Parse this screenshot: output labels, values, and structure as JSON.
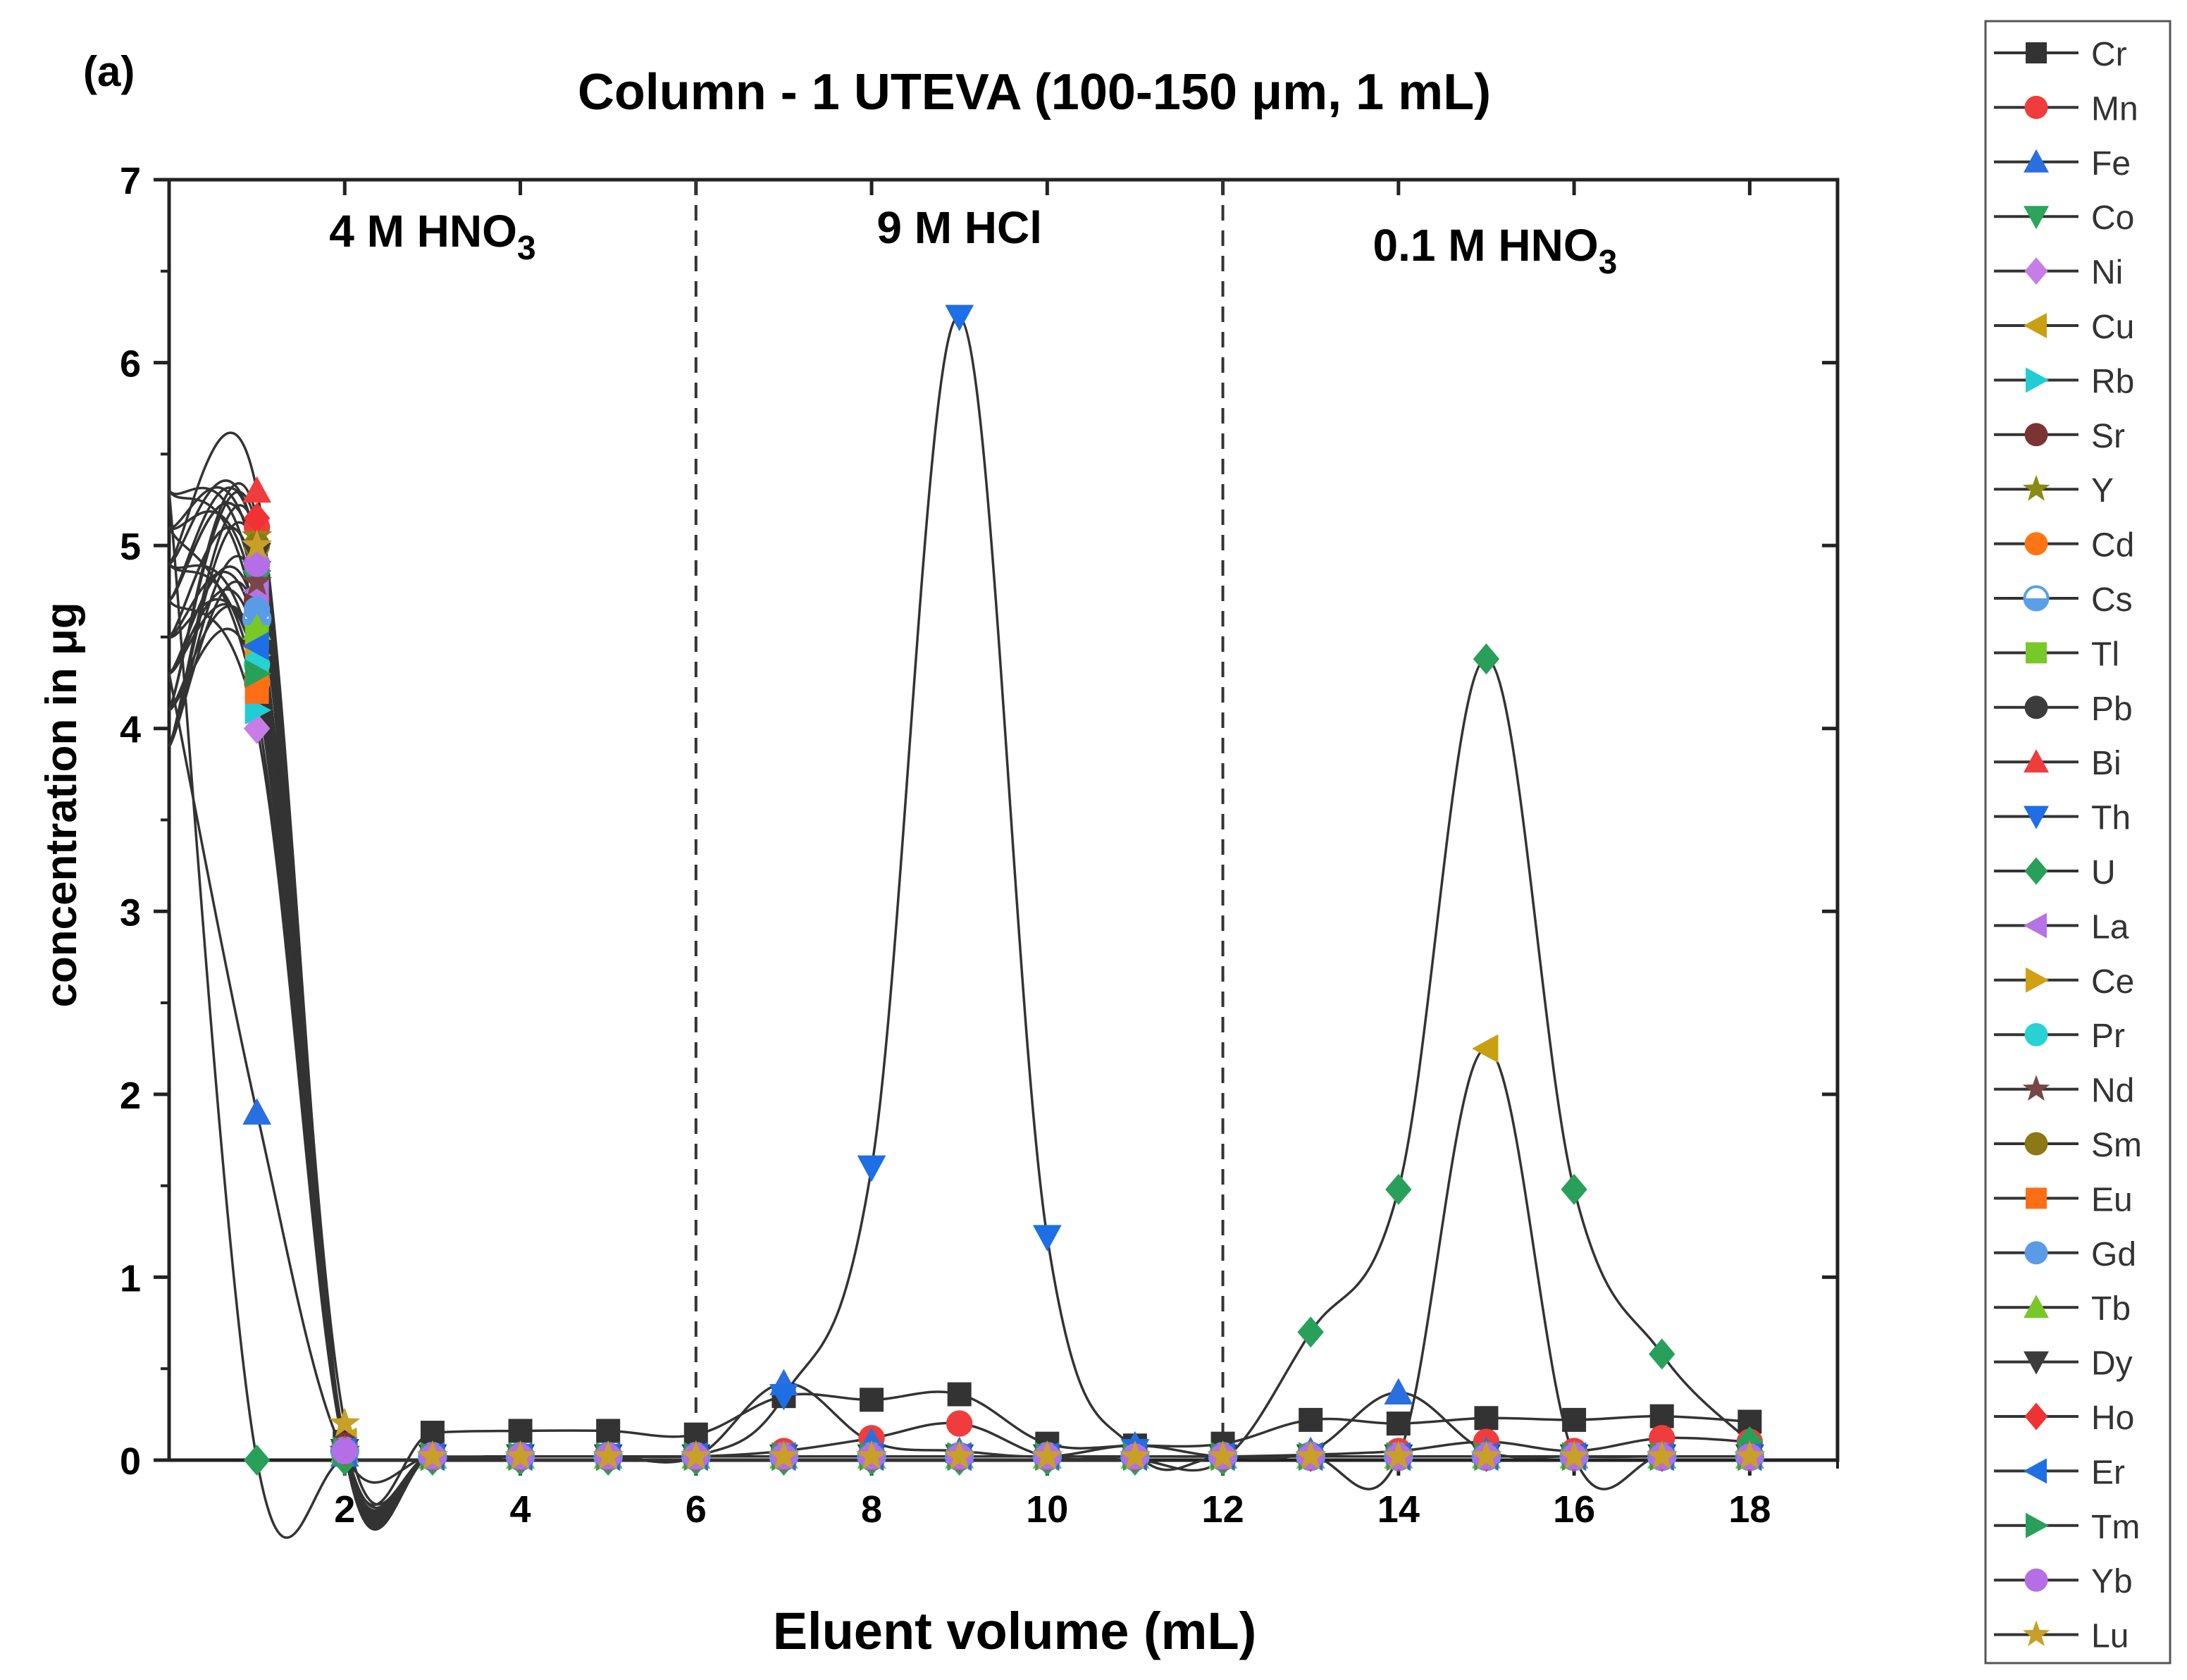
{
  "panel_label": "(a)",
  "chart_data": {
    "type": "line",
    "title": "Column - 1 UTEVA (100-150 μm, 1 mL)",
    "xlabel": "Eluent volume (mL)",
    "ylabel": "concentration in μg",
    "xlim": [
      0,
      19
    ],
    "ylim": [
      0,
      7
    ],
    "xticks": [
      2,
      4,
      6,
      8,
      10,
      12,
      14,
      16,
      18
    ],
    "yticks": [
      0,
      1,
      2,
      3,
      4,
      5,
      6,
      7
    ],
    "x": [
      1,
      2,
      3,
      4,
      5,
      6,
      7,
      8,
      9,
      10,
      11,
      12,
      13,
      14,
      15,
      16,
      17,
      18
    ],
    "line_color": "#333333",
    "grid": false,
    "legend_position": "right, outside",
    "dividers": [
      6,
      12
    ],
    "regions": [
      {
        "name": "region-4m-hno3",
        "label": "4 M HNO",
        "sub": "3"
      },
      {
        "name": "region-9m-hcl",
        "label": "9 M HCl",
        "sub": ""
      },
      {
        "name": "region-0-1m-hno3",
        "label": "0.1 M HNO",
        "sub": "3"
      }
    ],
    "series": [
      {
        "name": "Cr",
        "marker": "square",
        "color": "#333333",
        "values": [
          4.6,
          0.1,
          0.15,
          0.16,
          0.16,
          0.14,
          0.35,
          0.33,
          0.36,
          0.09,
          0.08,
          0.09,
          0.22,
          0.2,
          0.23,
          0.22,
          0.24,
          0.21
        ]
      },
      {
        "name": "Mn",
        "marker": "circle",
        "color": "#f03c3c",
        "values": [
          5.1,
          0.05,
          0.02,
          0.02,
          0.02,
          0.02,
          0.05,
          0.12,
          0.2,
          0.02,
          0.02,
          0.02,
          0.03,
          0.05,
          0.1,
          0.05,
          0.12,
          0.1
        ]
      },
      {
        "name": "Fe",
        "marker": "triangle-up",
        "color": "#2a6fe0",
        "values": [
          1.9,
          0.03,
          0.02,
          0.02,
          0.02,
          0.02,
          0.42,
          0.1,
          0.05,
          0.02,
          0.08,
          0.02,
          0.05,
          0.37,
          0.05,
          0.02,
          0.02,
          0.02
        ]
      },
      {
        "name": "Co",
        "marker": "triangle-down",
        "color": "#2aa55a",
        "values": [
          4.8,
          0.05,
          0.02,
          0.02,
          0.02,
          0.02,
          0.02,
          0.02,
          0.02,
          0.02,
          0.02,
          0.02,
          0.02,
          0.02,
          0.02,
          0.02,
          0.02,
          0.02
        ]
      },
      {
        "name": "Ni",
        "marker": "diamond",
        "color": "#c77de6",
        "values": [
          4.0,
          0.05,
          0.02,
          0.02,
          0.02,
          0.02,
          0.02,
          0.02,
          0.02,
          0.02,
          0.02,
          0.02,
          0.02,
          0.02,
          0.02,
          0.02,
          0.02,
          0.02
        ]
      },
      {
        "name": "Cu",
        "marker": "triangle-left",
        "color": "#c9a010",
        "values": [
          4.3,
          0.1,
          0.02,
          0.02,
          0.02,
          0.02,
          0.02,
          0.02,
          0.02,
          0.02,
          0.02,
          0.02,
          0.02,
          0.02,
          2.25,
          0.02,
          0.02,
          0.02
        ]
      },
      {
        "name": "Rb",
        "marker": "triangle-right",
        "color": "#22ccd4",
        "values": [
          4.1,
          0.05,
          0.02,
          0.02,
          0.02,
          0.02,
          0.02,
          0.02,
          0.02,
          0.02,
          0.02,
          0.02,
          0.02,
          0.02,
          0.02,
          0.02,
          0.02,
          0.02
        ]
      },
      {
        "name": "Sr",
        "marker": "circle",
        "color": "#7a3434",
        "values": [
          4.7,
          0.08,
          0.02,
          0.02,
          0.02,
          0.02,
          0.02,
          0.02,
          0.02,
          0.02,
          0.02,
          0.02,
          0.02,
          0.02,
          0.02,
          0.02,
          0.02,
          0.02
        ]
      },
      {
        "name": "Y",
        "marker": "star",
        "color": "#8a8a14",
        "values": [
          5.05,
          0.05,
          0.02,
          0.02,
          0.02,
          0.02,
          0.02,
          0.02,
          0.02,
          0.02,
          0.02,
          0.02,
          0.02,
          0.02,
          0.02,
          0.02,
          0.02,
          0.02
        ]
      },
      {
        "name": "Cd",
        "marker": "circle",
        "color": "#ff7514",
        "values": [
          4.25,
          0.05,
          0.02,
          0.02,
          0.02,
          0.02,
          0.02,
          0.02,
          0.02,
          0.02,
          0.02,
          0.02,
          0.02,
          0.02,
          0.02,
          0.02,
          0.02,
          0.02
        ]
      },
      {
        "name": "Cs",
        "marker": "circle-split",
        "color": "#5aa0e6",
        "values": [
          4.6,
          0.05,
          0.02,
          0.02,
          0.02,
          0.02,
          0.02,
          0.02,
          0.02,
          0.02,
          0.02,
          0.02,
          0.02,
          0.02,
          0.02,
          0.02,
          0.02,
          0.02
        ]
      },
      {
        "name": "Tl",
        "marker": "square",
        "color": "#78c828",
        "values": [
          4.5,
          0.05,
          0.02,
          0.02,
          0.02,
          0.02,
          0.02,
          0.02,
          0.02,
          0.02,
          0.02,
          0.02,
          0.02,
          0.02,
          0.02,
          0.02,
          0.02,
          0.02
        ]
      },
      {
        "name": "Pb",
        "marker": "circle",
        "color": "#3c3c3c",
        "values": [
          4.9,
          0.05,
          0.02,
          0.02,
          0.02,
          0.02,
          0.02,
          0.02,
          0.02,
          0.02,
          0.02,
          0.02,
          0.02,
          0.02,
          0.02,
          0.02,
          0.02,
          0.02
        ]
      },
      {
        "name": "Bi",
        "marker": "triangle-up",
        "color": "#f03c3c",
        "values": [
          5.3,
          0.05,
          0.02,
          0.02,
          0.02,
          0.02,
          0.02,
          0.02,
          0.02,
          0.02,
          0.02,
          0.02,
          0.02,
          0.02,
          0.02,
          0.02,
          0.02,
          0.02
        ]
      },
      {
        "name": "Th",
        "marker": "triangle-down",
        "color": "#1e6ee6",
        "values": [
          4.85,
          0.05,
          0.02,
          0.02,
          0.02,
          0.02,
          0.35,
          1.6,
          6.25,
          1.22,
          0.05,
          0.02,
          0.02,
          0.02,
          0.02,
          0.02,
          0.02,
          0.02
        ]
      },
      {
        "name": "U",
        "marker": "diamond",
        "color": "#28a05a",
        "values": [
          0.0,
          0.0,
          0.0,
          0.0,
          0.0,
          0.0,
          0.0,
          0.0,
          0.0,
          0.0,
          0.0,
          0.0,
          0.7,
          1.48,
          4.38,
          1.48,
          0.58,
          0.1
        ]
      },
      {
        "name": "La",
        "marker": "triangle-left",
        "color": "#b473e6",
        "values": [
          4.75,
          0.05,
          0.02,
          0.02,
          0.02,
          0.02,
          0.02,
          0.02,
          0.02,
          0.02,
          0.02,
          0.02,
          0.02,
          0.02,
          0.02,
          0.02,
          0.02,
          0.02
        ]
      },
      {
        "name": "Ce",
        "marker": "triangle-right",
        "color": "#d2a014",
        "values": [
          4.4,
          0.05,
          0.02,
          0.02,
          0.02,
          0.02,
          0.02,
          0.02,
          0.02,
          0.02,
          0.02,
          0.02,
          0.02,
          0.02,
          0.02,
          0.02,
          0.02,
          0.02
        ]
      },
      {
        "name": "Pr",
        "marker": "circle",
        "color": "#28d2d2",
        "values": [
          4.35,
          0.05,
          0.02,
          0.02,
          0.02,
          0.02,
          0.02,
          0.02,
          0.02,
          0.02,
          0.02,
          0.02,
          0.02,
          0.02,
          0.02,
          0.02,
          0.02,
          0.02
        ]
      },
      {
        "name": "Nd",
        "marker": "star",
        "color": "#784646",
        "values": [
          4.8,
          0.05,
          0.02,
          0.02,
          0.02,
          0.02,
          0.02,
          0.02,
          0.02,
          0.02,
          0.02,
          0.02,
          0.02,
          0.02,
          0.02,
          0.02,
          0.02,
          0.02
        ]
      },
      {
        "name": "Sm",
        "marker": "circle",
        "color": "#8c7814",
        "values": [
          5.0,
          0.05,
          0.02,
          0.02,
          0.02,
          0.02,
          0.02,
          0.02,
          0.02,
          0.02,
          0.02,
          0.02,
          0.02,
          0.02,
          0.02,
          0.02,
          0.02,
          0.02
        ]
      },
      {
        "name": "Eu",
        "marker": "square",
        "color": "#ff6e14",
        "values": [
          4.2,
          0.05,
          0.02,
          0.02,
          0.02,
          0.02,
          0.02,
          0.02,
          0.02,
          0.02,
          0.02,
          0.02,
          0.02,
          0.02,
          0.02,
          0.02,
          0.02,
          0.02
        ]
      },
      {
        "name": "Gd",
        "marker": "circle",
        "color": "#5a9be6",
        "values": [
          4.65,
          0.05,
          0.02,
          0.02,
          0.02,
          0.02,
          0.02,
          0.02,
          0.02,
          0.02,
          0.02,
          0.02,
          0.02,
          0.02,
          0.02,
          0.02,
          0.02,
          0.02
        ]
      },
      {
        "name": "Tb",
        "marker": "triangle-up",
        "color": "#78c828",
        "values": [
          4.55,
          0.05,
          0.02,
          0.02,
          0.02,
          0.02,
          0.02,
          0.02,
          0.02,
          0.02,
          0.02,
          0.02,
          0.02,
          0.02,
          0.02,
          0.02,
          0.02,
          0.02
        ]
      },
      {
        "name": "Dy",
        "marker": "triangle-down",
        "color": "#3c3c3c",
        "values": [
          4.95,
          0.05,
          0.02,
          0.02,
          0.02,
          0.02,
          0.02,
          0.02,
          0.02,
          0.02,
          0.02,
          0.02,
          0.02,
          0.02,
          0.02,
          0.02,
          0.02,
          0.02
        ]
      },
      {
        "name": "Ho",
        "marker": "diamond",
        "color": "#f03232",
        "values": [
          5.15,
          0.05,
          0.02,
          0.02,
          0.02,
          0.02,
          0.02,
          0.02,
          0.02,
          0.02,
          0.02,
          0.02,
          0.02,
          0.02,
          0.02,
          0.02,
          0.02,
          0.02
        ]
      },
      {
        "name": "Er",
        "marker": "triangle-left",
        "color": "#1e6ee6",
        "values": [
          4.45,
          0.05,
          0.02,
          0.02,
          0.02,
          0.02,
          0.02,
          0.02,
          0.02,
          0.02,
          0.02,
          0.02,
          0.02,
          0.02,
          0.02,
          0.02,
          0.02,
          0.02
        ]
      },
      {
        "name": "Tm",
        "marker": "triangle-right",
        "color": "#28a05a",
        "values": [
          4.3,
          0.05,
          0.02,
          0.02,
          0.02,
          0.02,
          0.02,
          0.02,
          0.02,
          0.02,
          0.02,
          0.02,
          0.02,
          0.02,
          0.02,
          0.02,
          0.02,
          0.02
        ]
      },
      {
        "name": "Yb",
        "marker": "circle",
        "color": "#b46ee6",
        "values": [
          4.9,
          0.05,
          0.02,
          0.02,
          0.02,
          0.02,
          0.02,
          0.02,
          0.02,
          0.02,
          0.02,
          0.02,
          0.02,
          0.02,
          0.02,
          0.02,
          0.02,
          0.02
        ]
      },
      {
        "name": "Lu",
        "marker": "star",
        "color": "#c8a028",
        "values": [
          5.0,
          0.2,
          0.02,
          0.02,
          0.02,
          0.02,
          0.02,
          0.02,
          0.02,
          0.02,
          0.02,
          0.02,
          0.02,
          0.02,
          0.02,
          0.02,
          0.02,
          0.02
        ]
      }
    ]
  }
}
